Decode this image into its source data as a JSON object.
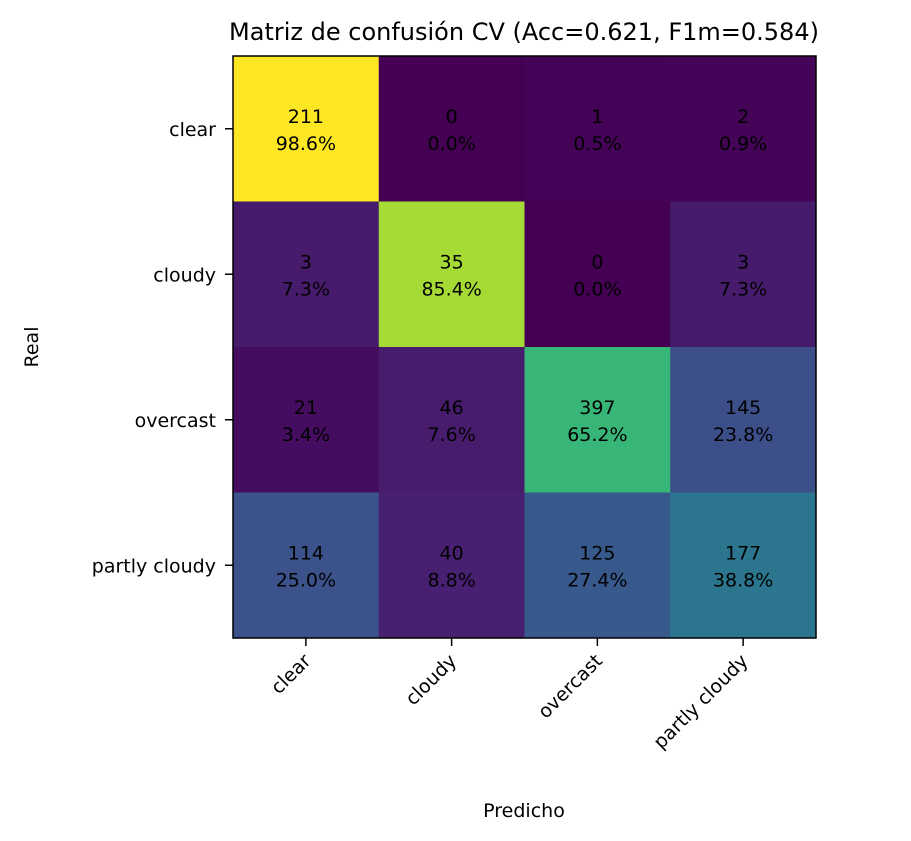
{
  "chart_data": {
    "type": "heatmap",
    "title": "Matriz de confusión CV (Acc=0.621, F1m=0.584)",
    "xlabel": "Predicho",
    "ylabel": "Real",
    "x_categories": [
      "clear",
      "cloudy",
      "overcast",
      "partly cloudy"
    ],
    "y_categories": [
      "clear",
      "cloudy",
      "overcast",
      "partly cloudy"
    ],
    "counts": [
      [
        211,
        0,
        1,
        2
      ],
      [
        3,
        35,
        0,
        3
      ],
      [
        21,
        46,
        397,
        145
      ],
      [
        114,
        40,
        125,
        177
      ]
    ],
    "percents": [
      [
        "98.6%",
        "0.0%",
        "0.5%",
        "0.9%"
      ],
      [
        "7.3%",
        "85.4%",
        "0.0%",
        "7.3%"
      ],
      [
        "3.4%",
        "7.6%",
        "65.2%",
        "23.8%"
      ],
      [
        "25.0%",
        "8.8%",
        "27.4%",
        "38.8%"
      ]
    ],
    "normalized": [
      [
        0.986,
        0.0,
        0.005,
        0.009
      ],
      [
        0.073,
        0.854,
        0.0,
        0.073
      ],
      [
        0.034,
        0.076,
        0.652,
        0.238
      ],
      [
        0.25,
        0.088,
        0.274,
        0.388
      ]
    ],
    "colormap": "viridis",
    "color_range": [
      0,
      0.986
    ],
    "grid": false
  }
}
